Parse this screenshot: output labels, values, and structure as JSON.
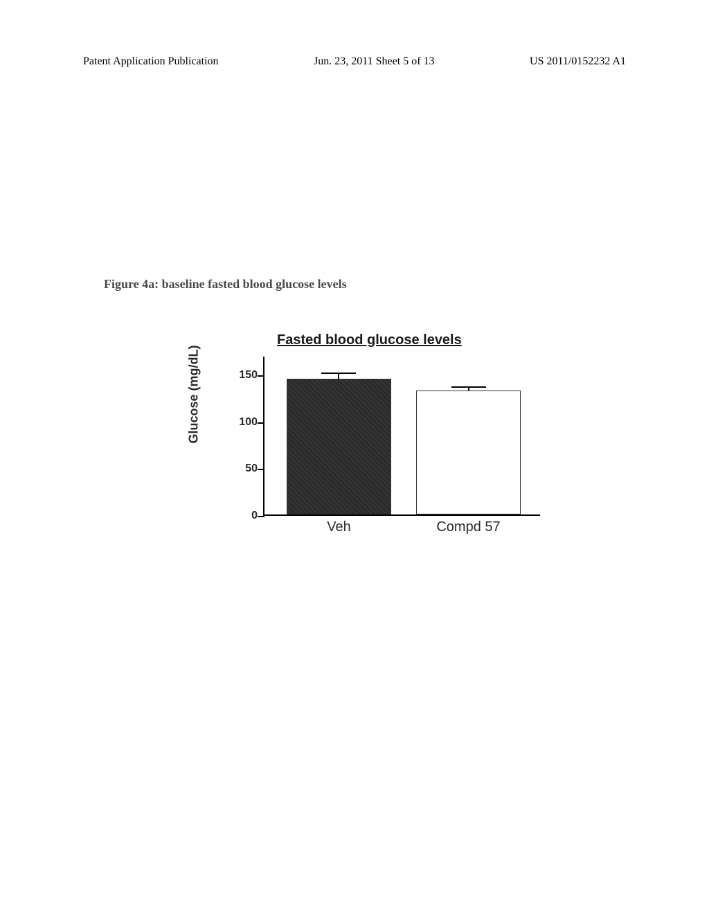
{
  "header": {
    "left": "Patent Application Publication",
    "center": "Jun. 23, 2011  Sheet 5 of 13",
    "right": "US 2011/0152232 A1"
  },
  "figure_caption": "Figure 4a: baseline fasted blood glucose levels",
  "chart": {
    "type": "bar",
    "title": "Fasted blood glucose levels",
    "y_axis_label": "Glucose (mg/dL)",
    "y_ticks": [
      0,
      50,
      100,
      150
    ],
    "y_max": 170,
    "background_color": "#ffffff",
    "axis_color": "#000000",
    "bars": [
      {
        "label": "Veh",
        "value": 145,
        "error": 5,
        "fill": "#2a2a2a",
        "x_percent": 8,
        "width_percent": 38
      },
      {
        "label": "Compd 57",
        "value": 132,
        "error": 3,
        "fill": "#ffffff",
        "x_percent": 55,
        "width_percent": 38
      }
    ],
    "label_fontsize": 18,
    "tick_fontsize": 16,
    "title_fontsize": 20
  }
}
